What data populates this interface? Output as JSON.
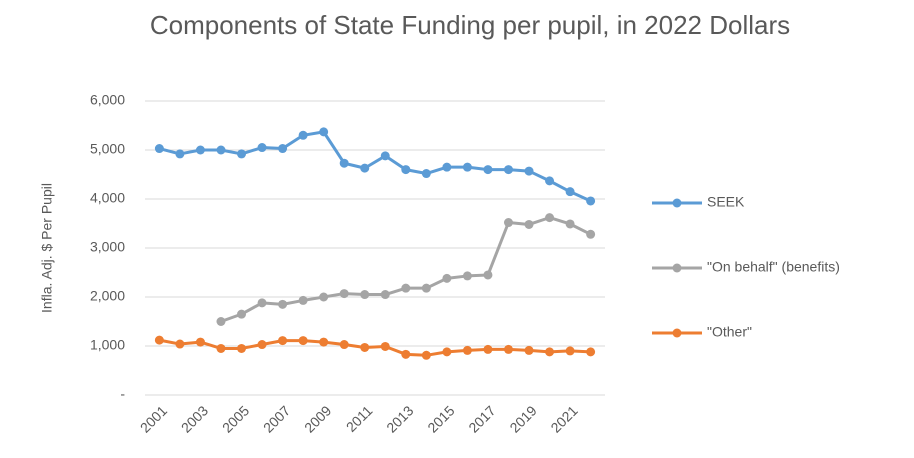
{
  "chart_data": {
    "type": "line",
    "title": "Components of State Funding per pupil, in 2022 Dollars",
    "y_label": "Infla. Adj. $ Per Pupil",
    "x": [
      2001,
      2002,
      2003,
      2004,
      2005,
      2006,
      2007,
      2008,
      2009,
      2010,
      2011,
      2012,
      2013,
      2014,
      2015,
      2016,
      2017,
      2018,
      2019,
      2020,
      2021,
      2022
    ],
    "xlim": [
      2000.3,
      2022.7
    ],
    "xticks": [
      2001,
      2003,
      2005,
      2007,
      2009,
      2011,
      2013,
      2015,
      2017,
      2019,
      2021
    ],
    "ylim": [
      0,
      6000
    ],
    "yticks": [
      {
        "value": 0,
        "label": "-"
      },
      {
        "value": 1000,
        "label": "1,000"
      },
      {
        "value": 2000,
        "label": "2,000"
      },
      {
        "value": 3000,
        "label": "3,000"
      },
      {
        "value": 4000,
        "label": "4,000"
      },
      {
        "value": 5000,
        "label": "5,000"
      },
      {
        "value": 6000,
        "label": "6,000"
      }
    ],
    "grid": true,
    "legend": "right",
    "series": [
      {
        "name": "SEEK",
        "color": "#5b9bd5",
        "values": [
          5030,
          4920,
          5000,
          5000,
          4920,
          5050,
          5030,
          5300,
          5370,
          4730,
          4630,
          4880,
          4600,
          4520,
          4650,
          4650,
          4600,
          4600,
          4570,
          4370,
          4150,
          3960
        ]
      },
      {
        "name": "\"On behalf\" (benefits)",
        "color": "#a5a5a5",
        "values": [
          null,
          null,
          null,
          1500,
          1650,
          1880,
          1850,
          1930,
          2000,
          2070,
          2050,
          2050,
          2180,
          2180,
          2380,
          2430,
          2450,
          3520,
          3480,
          3620,
          3490,
          3280
        ]
      },
      {
        "name": "\"Other\"",
        "color": "#ed7d31",
        "values": [
          1120,
          1040,
          1080,
          950,
          950,
          1030,
          1110,
          1110,
          1080,
          1030,
          970,
          990,
          830,
          810,
          880,
          910,
          930,
          930,
          910,
          880,
          900,
          880
        ]
      }
    ]
  }
}
